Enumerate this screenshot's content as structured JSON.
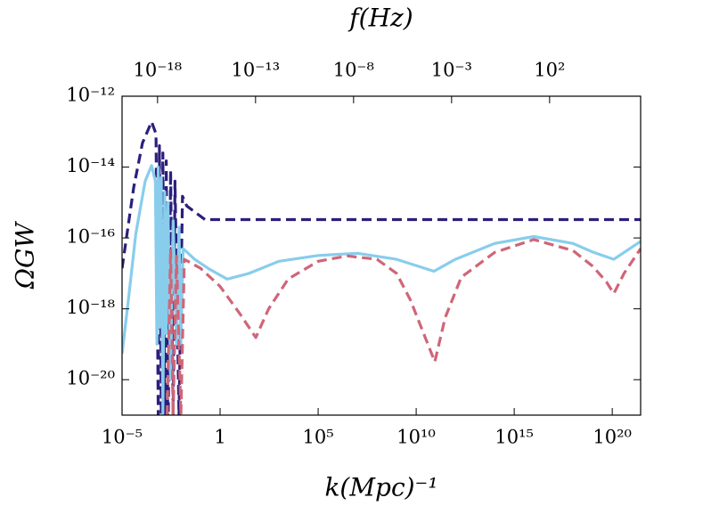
{
  "chart_data": {
    "type": "line",
    "title": "f(Hz)",
    "xlabel": "k(Mpc)⁻¹",
    "ylabel": "ΩGW",
    "xscale": "log",
    "yscale": "log",
    "xlim": [
      1e-05,
      2.8e+21
    ],
    "ylim": [
      1e-21,
      1e-12
    ],
    "x2lim": [
      1.55e-20,
      4400000.0
    ],
    "xticks": [
      {
        "value": 1e-05,
        "label": "10⁻⁵"
      },
      1,
      {
        "value": 100000.0,
        "label": "10⁵"
      },
      {
        "value": 10000000000.0,
        "label": "10¹⁰"
      },
      {
        "value": 1000000000000000.0,
        "label": "10¹⁵"
      },
      {
        "value": 1e+20,
        "label": "10²⁰"
      }
    ],
    "x2ticks": [
      {
        "value": 1e-18,
        "label": "10⁻¹⁸"
      },
      {
        "value": 1e-13,
        "label": "10⁻¹³"
      },
      {
        "value": 1e-08,
        "label": "10⁻⁸"
      },
      {
        "value": 0.001,
        "label": "10⁻³"
      },
      {
        "value": 100,
        "label": "10²"
      }
    ],
    "yticks": [
      {
        "value": 1e-12,
        "label": "10⁻¹²"
      },
      {
        "value": 1e-14,
        "label": "10⁻¹⁴"
      },
      {
        "value": 1e-16,
        "label": "10⁻¹⁶"
      },
      {
        "value": 1e-18,
        "label": "10⁻¹⁸"
      },
      {
        "value": 1e-20,
        "label": "10⁻²⁰"
      }
    ],
    "series": [
      {
        "color": "#2b1f7c",
        "dash": "dashed",
        "x": [
          1e-05,
          3.9e-05,
          0.00011,
          0.00032,
          0.00054,
          0.0007,
          0.0008,
          0.001,
          0.0012,
          0.0015,
          0.0018,
          0.0022,
          0.003,
          0.004,
          0.005,
          0.008,
          0.012,
          0.02,
          0.17,
          1e+21,
          2.8e+21
        ],
        "values": [
          1.4e-17,
          2.6e-15,
          4.8e-14,
          1.9e-13,
          8.7e-14,
          1e-21,
          4e-14,
          1e-21,
          2.5e-14,
          1e-21,
          1.5e-14,
          1e-22,
          8e-15,
          1e-21,
          4e-15,
          1e-21,
          1.5e-15,
          8e-16,
          3.3e-16,
          3.3e-16,
          3.3e-16
        ]
      },
      {
        "color": "#88cdec",
        "dash": "solid",
        "x": [
          1e-05,
          2e-05,
          5e-05,
          0.00015,
          0.00032,
          0.0005,
          0.0006,
          0.0007,
          0.0008,
          0.001,
          0.0012,
          0.0015,
          0.0018,
          0.0022,
          0.003,
          0.004,
          0.006,
          0.008,
          0.01,
          0.013,
          0.05,
          0.3,
          2.3,
          30,
          1000.0,
          100000.0,
          10000000.0,
          1000000000.0,
          80000000000.0,
          1000000000000.0,
          100000000000000.0,
          1e+16,
          1e+18,
          1e+19,
          1.2e+20,
          2.8e+21
        ],
        "values": [
          5.4e-20,
          1.4e-18,
          1.3e-16,
          4e-15,
          1.1e-14,
          4e-15,
          1e-19,
          1e-14,
          3e-19,
          5e-15,
          1e-21,
          2e-15,
          2e-19,
          1e-15,
          1e-20,
          3e-16,
          1e-19,
          2e-16,
          1e-19,
          5e-17,
          2.5e-17,
          1.3e-17,
          6.9e-18,
          1e-17,
          2.2e-17,
          3.2e-17,
          3.7e-17,
          2.5e-17,
          1.15e-17,
          2.5e-17,
          7e-17,
          1.1e-16,
          7e-17,
          4e-17,
          2.5e-17,
          8e-17
        ]
      },
      {
        "color": "#cf6678",
        "dash": "dashed",
        "x": [
          0.002,
          0.003,
          0.004,
          0.006,
          0.01,
          0.015,
          0.1,
          1,
          10,
          66,
          300,
          3000,
          100000.0,
          3000000.0,
          100000000.0,
          1000000000.0,
          5000000000.0,
          89000000000.0,
          300000000000.0,
          2000000000000.0,
          100000000000000.0,
          1e+16,
          1e+18,
          1e+19,
          5e+19,
          1.2e+20,
          4e+20,
          2.8e+21
        ],
        "values": [
          1e-21,
          5e-17,
          1e-21,
          3e-17,
          1e-21,
          2.5e-17,
          1.4e-17,
          4.3e-18,
          7.4e-19,
          1.55e-19,
          1e-18,
          7e-18,
          2.2e-17,
          3.1e-17,
          2.5e-17,
          1e-17,
          1.8e-18,
          3.2e-20,
          5.6e-19,
          7.8e-18,
          3.9e-17,
          9e-17,
          4.4e-17,
          1.6e-17,
          5.8e-18,
          2.7e-18,
          1e-17,
          5e-17
        ]
      }
    ]
  }
}
